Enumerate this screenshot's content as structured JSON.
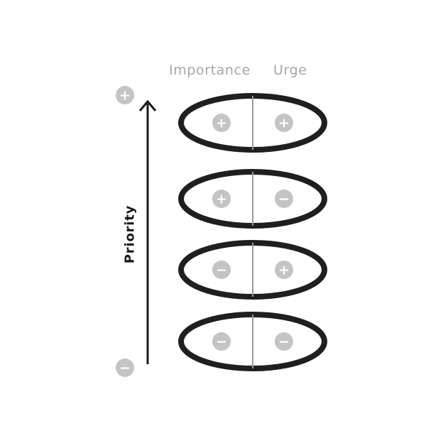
{
  "headers": {
    "importance": "Importance",
    "urge": "Urge"
  },
  "axis": {
    "label": "Priority",
    "top_sign": "+",
    "bottom_sign": "−"
  },
  "rows": [
    {
      "importance": "+",
      "urge": "+"
    },
    {
      "importance": "+",
      "urge": "−"
    },
    {
      "importance": "−",
      "urge": "+"
    },
    {
      "importance": "−",
      "urge": "−"
    }
  ],
  "colors": {
    "ellipse_stroke": "#1f1f1f",
    "divider": "#9a9a9a",
    "badge_fill": "#c4c4c4",
    "header_text": "#a6a6a6",
    "axis": "#1a1a1a"
  }
}
